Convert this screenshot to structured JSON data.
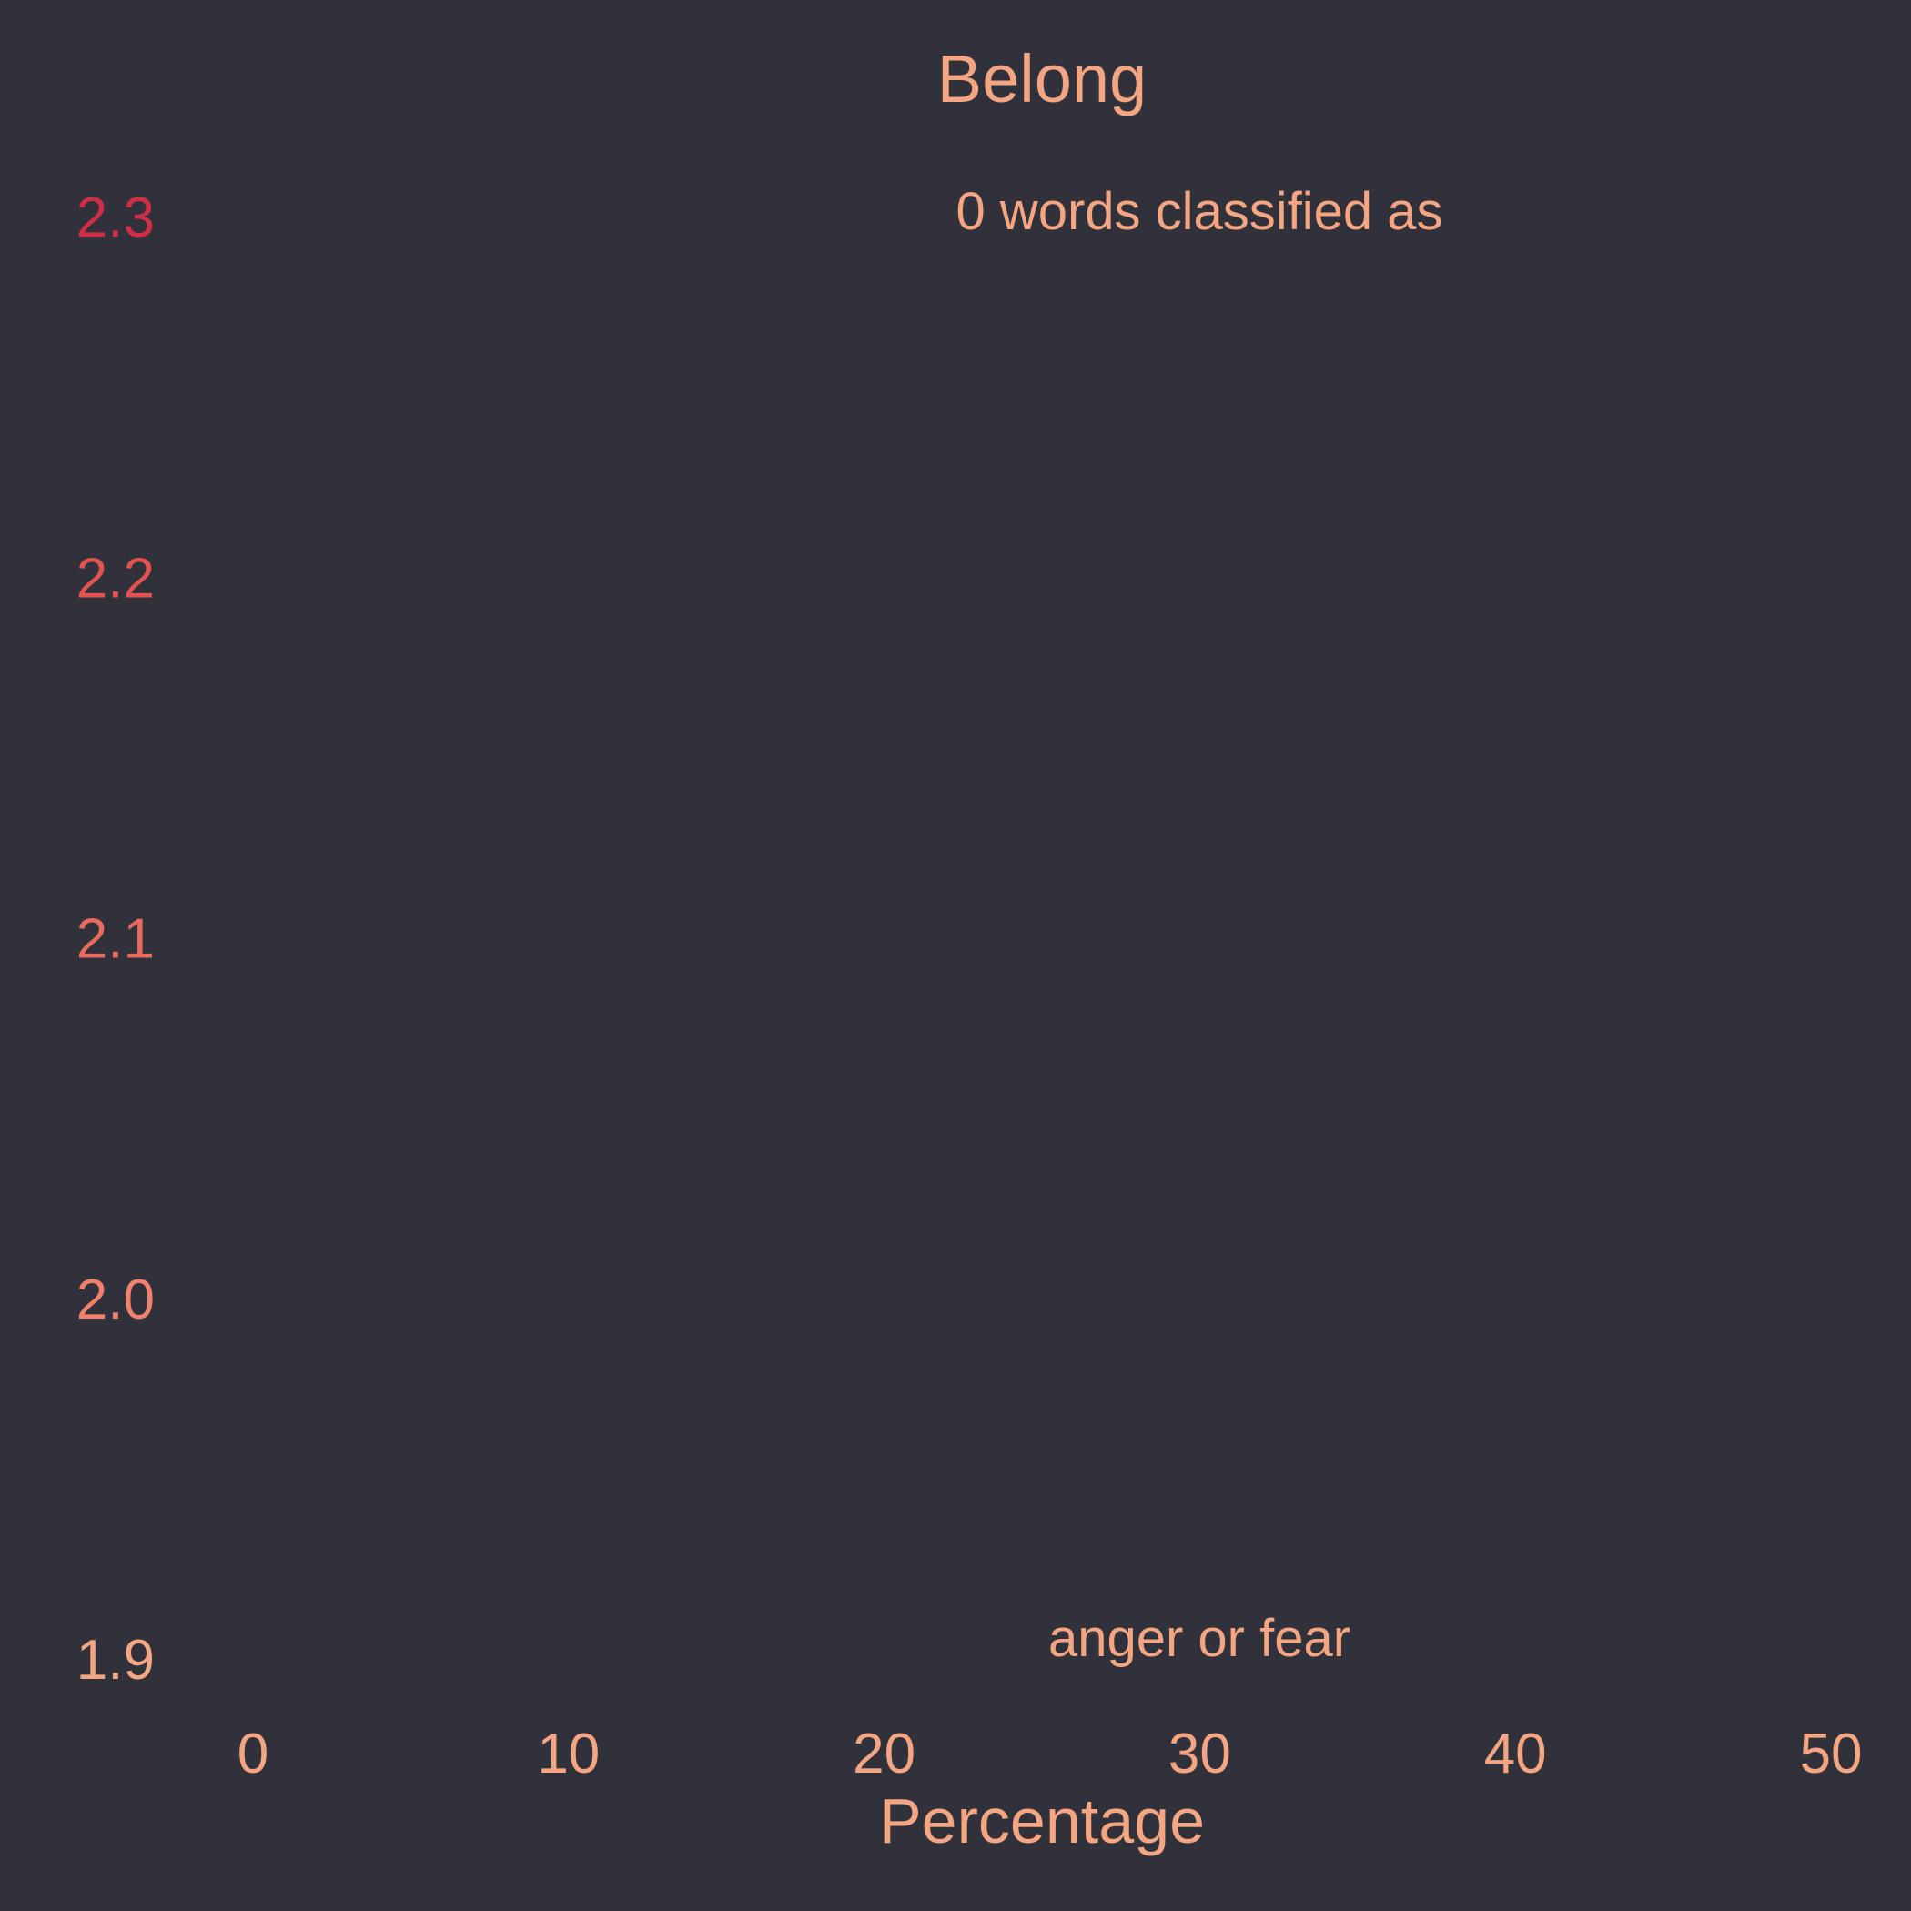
{
  "chart_data": {
    "type": "bar",
    "orientation": "horizontal",
    "title": "Belong",
    "xlabel": "Percentage",
    "ylabel": "",
    "xlim": [
      -3,
      53
    ],
    "ylim": [
      1.9,
      2.3
    ],
    "x_ticks": [
      "0",
      "10",
      "20",
      "30",
      "40",
      "50"
    ],
    "y_ticks": [
      "1.9",
      "2.0",
      "2.1",
      "2.2",
      "2.3"
    ],
    "series": [],
    "annotations": [
      "0 words classified as",
      "anger or fear"
    ],
    "grid": false,
    "legend": false
  },
  "colors": {
    "background": "#31313b",
    "text": "#f4a582",
    "y_tick_colors": [
      "#f4a582",
      "#f0826c",
      "#ea6a5c",
      "#e2534f",
      "#d22d47"
    ]
  }
}
